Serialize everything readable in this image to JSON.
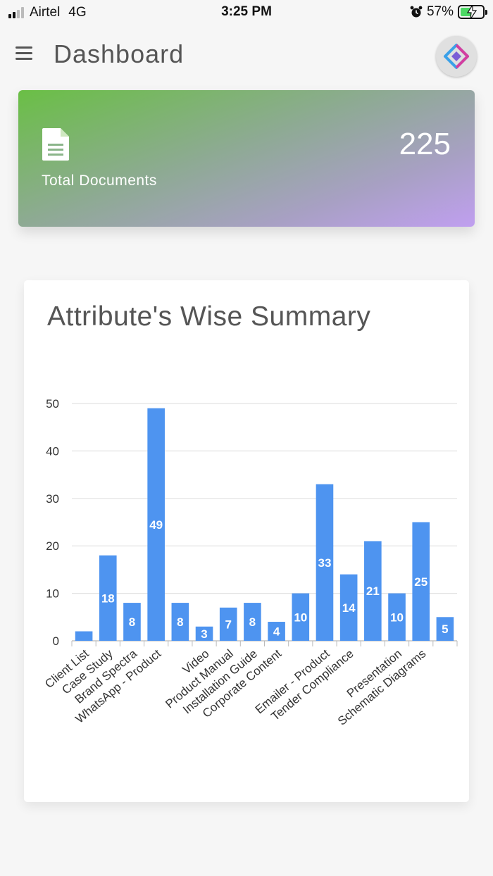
{
  "status_bar": {
    "carrier": "Airtel",
    "network": "4G",
    "time": "3:25 PM",
    "battery_percent": "57%",
    "battery_level": 0.57,
    "alarm_icon": "alarm-clock-icon",
    "charging_icon": "lightning-bolt-icon"
  },
  "header": {
    "title": "Dashboard",
    "menu_icon": "hamburger-menu-icon",
    "avatar_icon": "app-logo-icon"
  },
  "doc_card": {
    "label": "Total Documents",
    "count": "225",
    "icon": "document-icon",
    "gradient_colors": [
      "#6abf45",
      "#c09ff0"
    ]
  },
  "chart_card": {
    "title": "Attribute's Wise Summary"
  },
  "chart_data": {
    "type": "bar",
    "title": "Attribute's Wise Summary",
    "xlabel": "",
    "ylabel": "",
    "ylim": [
      0,
      50
    ],
    "yticks": [
      "0",
      "10",
      "20",
      "30",
      "40",
      "50"
    ],
    "grid": true,
    "bar_color": "#4e94f0",
    "categories": [
      "Client List",
      "Case Study",
      "Brand Spectra",
      "WhatsApp - Product",
      "",
      "Video",
      "Product Manual",
      "Installation Guide",
      "Corporate Content",
      "",
      "Emailer - Product",
      "Tender Compliance",
      "",
      "Presentation",
      "Schematic Diagrams",
      ""
    ],
    "values": [
      2,
      18,
      8,
      49,
      8,
      3,
      7,
      8,
      4,
      10,
      33,
      14,
      21,
      10,
      25,
      5
    ],
    "data_labels": [
      "",
      "18",
      "8",
      "49",
      "8",
      "3",
      "7",
      "8",
      "4",
      "10",
      "33",
      "14",
      "21",
      "10",
      "25",
      "5"
    ]
  }
}
